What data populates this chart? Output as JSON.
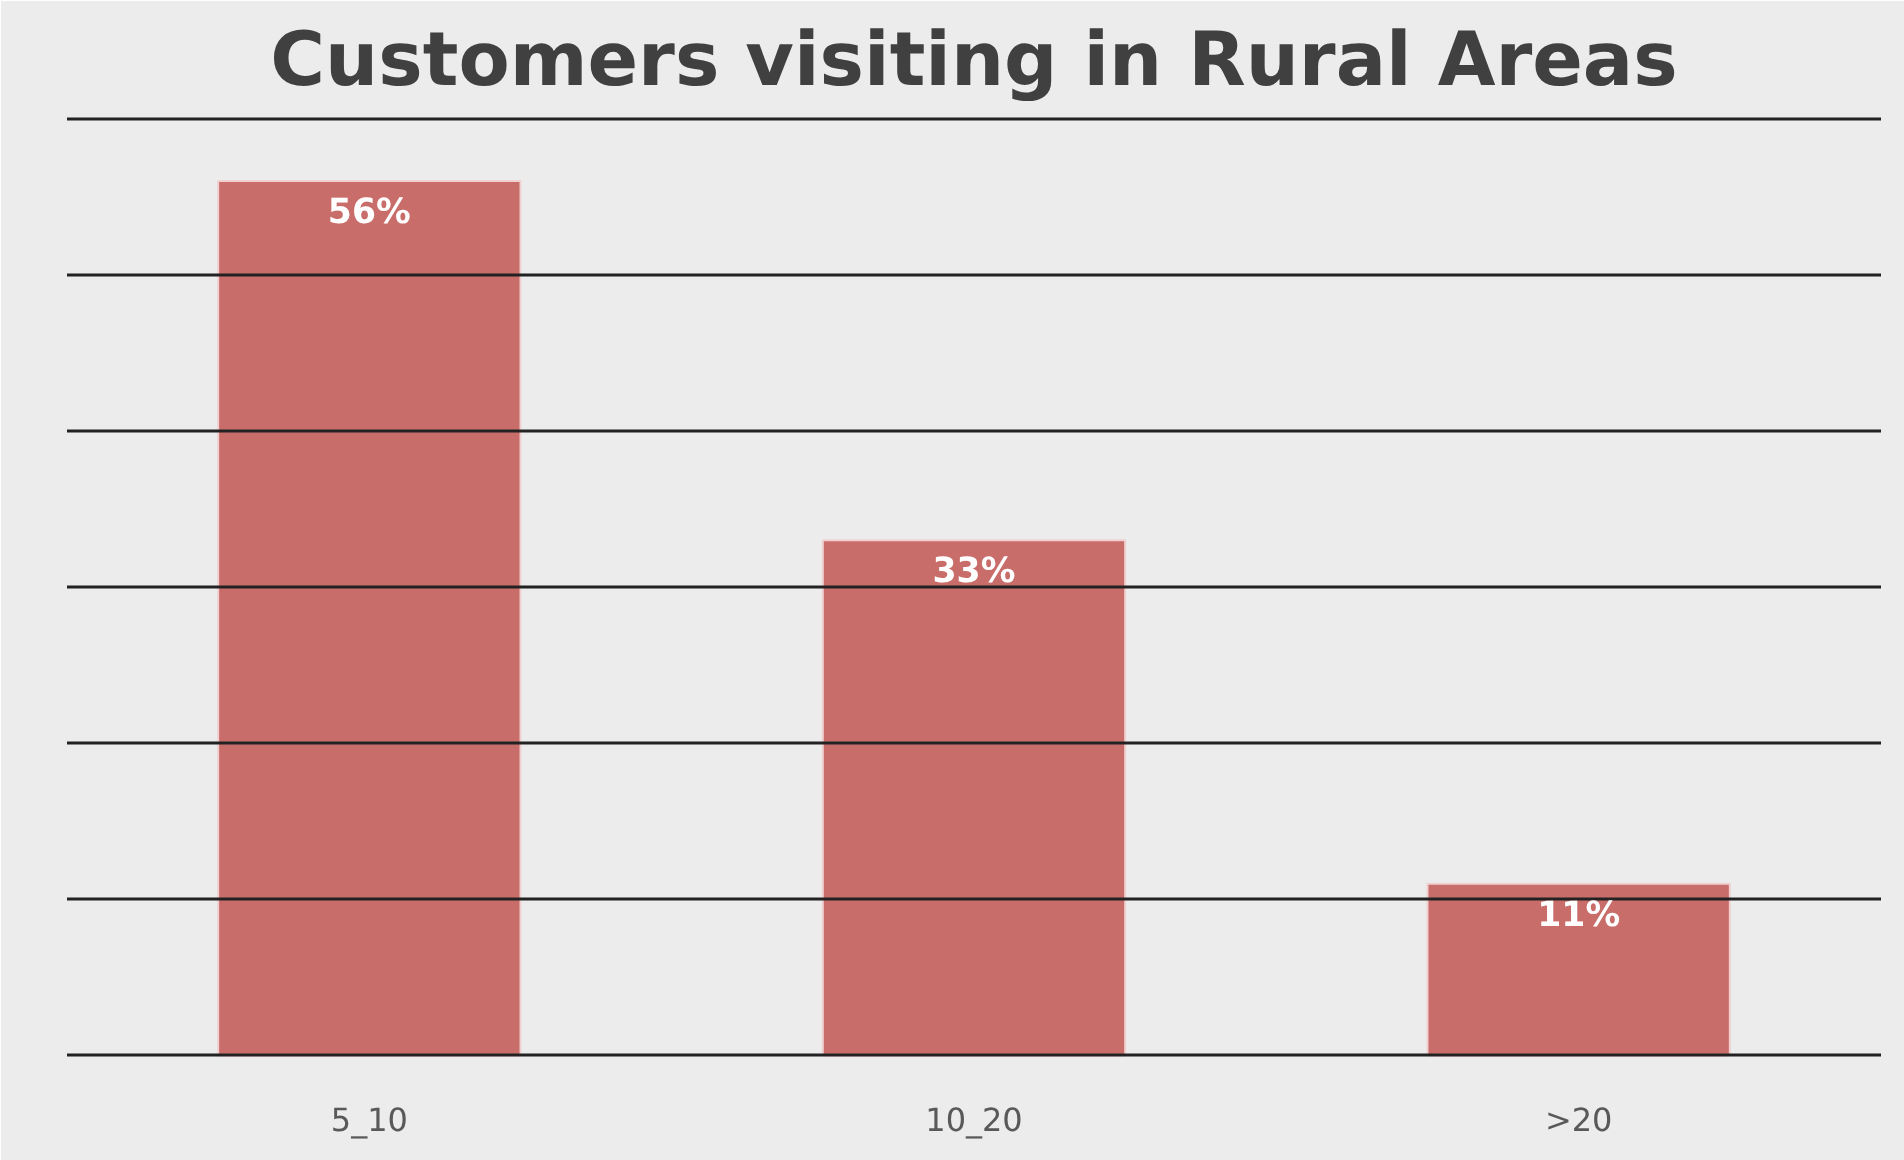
{
  "chart_data": {
    "type": "bar",
    "title": "Customers visiting in Rural Areas",
    "categories": [
      "5_10",
      "10_20",
      ">20"
    ],
    "values": [
      56,
      33,
      11
    ],
    "color": "#c45b58",
    "ylim": [
      0,
      60
    ],
    "yticks": [
      {
        "value": 0,
        "label": null
      },
      {
        "value": 10,
        "label": null
      },
      {
        "value": 20,
        "label": null
      },
      {
        "value": 30,
        "label": null
      },
      {
        "value": 40,
        "label": null
      },
      {
        "value": 50,
        "label": null
      },
      {
        "value": 60,
        "label": null
      }
    ],
    "value_labels": [
      "56%",
      "33%",
      "11%"
    ],
    "grid": "y",
    "tick_labels": "x"
  }
}
